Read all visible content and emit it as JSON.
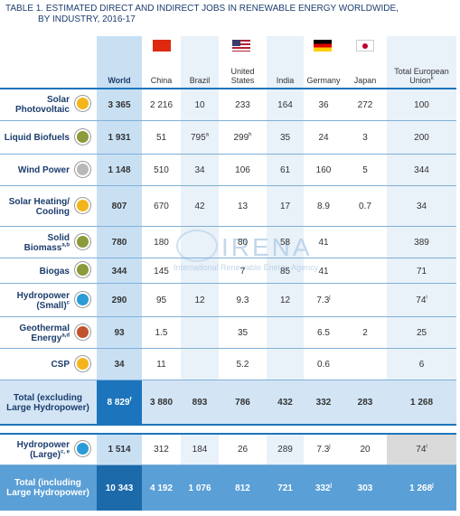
{
  "title": [
    "TABLE 1. ESTIMATED DIRECT AND INDIRECT JOBS IN RENEWABLE ENERGY WORLDWIDE,",
    "BY INDUSTRY, 2016-17"
  ],
  "watermark": {
    "name": "IRENA",
    "subtitle": "International Renewable Energy Agency"
  },
  "columns": [
    "World",
    "China",
    "Brazil",
    "United States",
    "India",
    "Germany",
    "Japan",
    {
      "text": "Total European Union",
      "sup": "k"
    }
  ],
  "rows": [
    {
      "label": "Solar Photovoltaic",
      "cells": [
        "3 365",
        "2 216",
        "10",
        "233",
        "164",
        "36",
        "272",
        "100"
      ]
    },
    {
      "label": "Liquid Biofuels",
      "cells": [
        "1 931",
        "51",
        {
          "text": "795",
          "sup": "a"
        },
        {
          "text": "299",
          "sup": "h"
        },
        "35",
        "24",
        "3",
        "200"
      ]
    },
    {
      "label": "Wind Power",
      "cells": [
        "1 148",
        "510",
        "34",
        "106",
        "61",
        "160",
        "5",
        "344"
      ]
    },
    {
      "label": "Solar Heating/ Cooling",
      "cells": [
        "807",
        "670",
        "42",
        "13",
        "17",
        "8.9",
        "0.7",
        "34"
      ]
    },
    {
      "label": {
        "text": "Solid Biomass",
        "sup": "a,b"
      },
      "cells": [
        "780",
        "180",
        null,
        "80",
        "58",
        "41",
        null,
        "389"
      ]
    },
    {
      "label": "Biogas",
      "cells": [
        "344",
        "145",
        null,
        "7",
        "85",
        "41",
        null,
        "71"
      ]
    },
    {
      "label": {
        "text": "Hydropower (Small)",
        "sup": "c"
      },
      "cells": [
        "290",
        "95",
        "12",
        "9.3",
        "12",
        {
          "text": "7.3",
          "sup": "j"
        },
        null,
        {
          "text": "74",
          "sup": "i"
        }
      ]
    },
    {
      "label": {
        "text": "Geothermal Energy",
        "sup": "a,d"
      },
      "cells": [
        "93",
        "1.5",
        null,
        "35",
        null,
        "6.5",
        "2",
        "25"
      ]
    },
    {
      "label": "CSP",
      "cells": [
        "34",
        "11",
        null,
        "5.2",
        null,
        "0.6",
        null,
        "6"
      ]
    },
    {
      "label": "Total (excluding Large Hydropower)",
      "cells": [
        {
          "text": "8 829",
          "sup": "f"
        },
        "3 880",
        "893",
        "786",
        "432",
        "332",
        "283",
        "1 268"
      ]
    },
    {
      "label": {
        "text": "Hydropower (Large)",
        "sup": "c, e"
      },
      "cells": [
        "1 514",
        "312",
        "184",
        "26",
        "289",
        {
          "text": "7.3",
          "sup": "j"
        },
        "20",
        {
          "text": "74",
          "sup": "i"
        }
      ]
    },
    {
      "label": "Total (including Large Hydropower)",
      "cells": [
        "10 343",
        "4 192",
        "1 076",
        "812",
        "721",
        {
          "text": "332",
          "sup": "j"
        },
        "303",
        {
          "text": "1 268",
          "sup": "j"
        }
      ]
    }
  ]
}
